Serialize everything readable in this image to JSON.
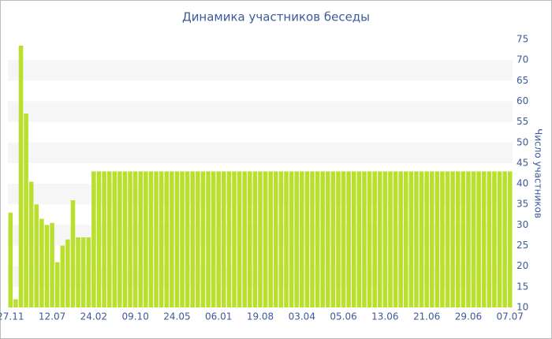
{
  "chart_data": {
    "type": "bar",
    "title": "Динамика участников беседы",
    "y_axis_label": "Число участников",
    "color": "#b8e02c",
    "grid_bands": true,
    "axis_side": "right",
    "categories": [
      "27.11",
      null,
      null,
      null,
      null,
      null,
      null,
      null,
      "12.07",
      null,
      null,
      null,
      null,
      null,
      null,
      null,
      "24.02",
      null,
      null,
      null,
      null,
      null,
      null,
      null,
      "09.10",
      null,
      null,
      null,
      null,
      null,
      null,
      null,
      "24.05",
      null,
      null,
      null,
      null,
      null,
      null,
      null,
      "06.01",
      null,
      null,
      null,
      null,
      null,
      null,
      null,
      "19.08",
      null,
      null,
      null,
      null,
      null,
      null,
      null,
      "03.04",
      null,
      null,
      null,
      null,
      null,
      null,
      null,
      "05.06",
      null,
      null,
      null,
      null,
      null,
      null,
      null,
      "13.06",
      null,
      null,
      null,
      null,
      null,
      null,
      null,
      "21.06",
      null,
      null,
      null,
      null,
      null,
      null,
      null,
      "29.06",
      null,
      null,
      null,
      null,
      null,
      null,
      null,
      "07.07"
    ],
    "values": [
      33,
      12,
      73.5,
      57,
      40.5,
      35,
      31.5,
      30,
      30.5,
      21,
      25,
      26.5,
      36,
      27,
      27,
      27,
      43,
      43,
      43,
      43,
      43,
      43,
      43,
      43,
      43,
      43,
      43,
      43,
      43,
      43,
      43,
      43,
      43,
      43,
      43,
      43,
      43,
      43,
      43,
      43,
      43,
      43,
      43,
      43,
      43,
      43,
      43,
      43,
      43,
      43,
      43,
      43,
      43,
      43,
      43,
      43,
      43,
      43,
      43,
      43,
      43,
      43,
      43,
      43,
      43,
      43,
      43,
      43,
      43,
      43,
      43,
      43,
      43,
      43,
      43,
      43,
      43,
      43,
      43,
      43,
      43,
      43,
      43,
      43,
      43,
      43,
      43,
      43,
      43,
      43,
      43,
      43,
      43,
      43,
      43,
      43,
      43
    ],
    "ylim": [
      10,
      75
    ],
    "yticks": [
      10,
      15,
      20,
      25,
      30,
      35,
      40,
      45,
      50,
      55,
      60,
      65,
      70,
      75
    ]
  }
}
